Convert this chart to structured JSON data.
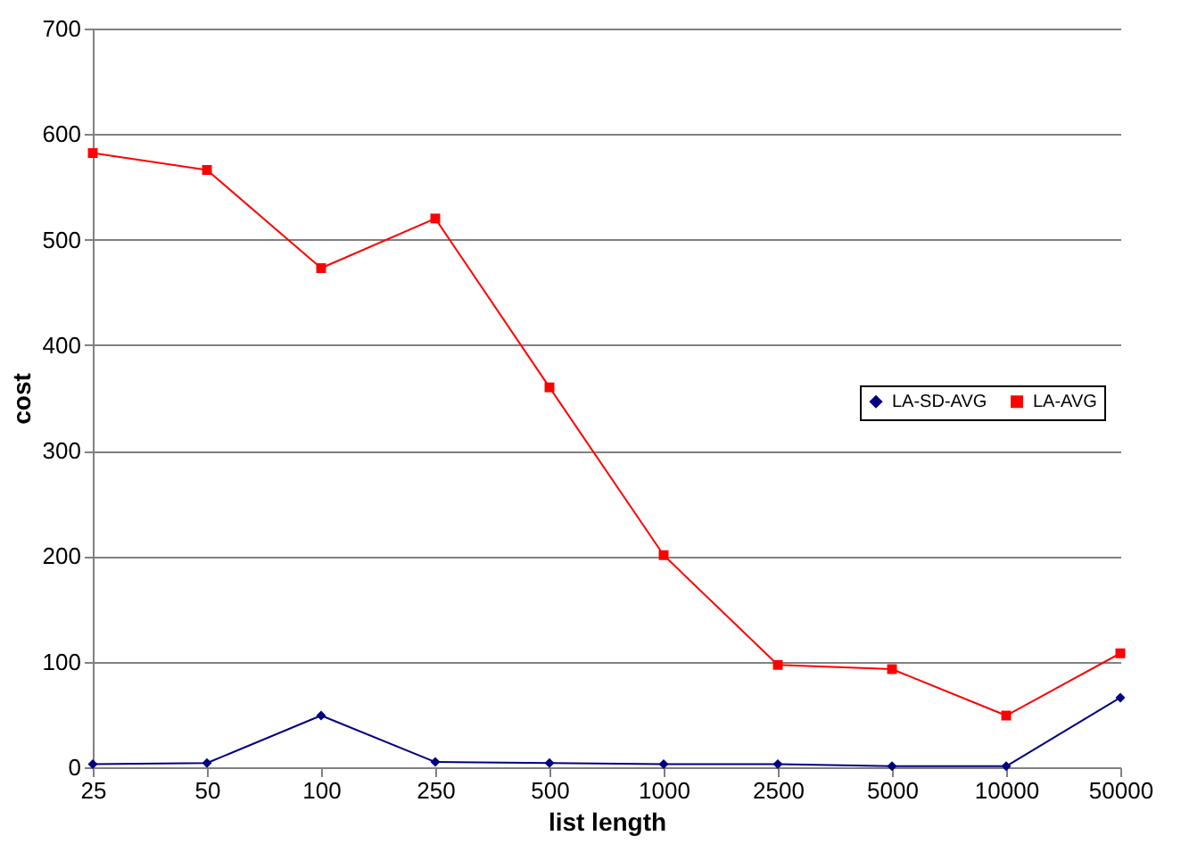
{
  "chart_data": {
    "type": "line",
    "xlabel": "list length",
    "ylabel": "cost",
    "categories": [
      "25",
      "50",
      "100",
      "250",
      "500",
      "1000",
      "2500",
      "5000",
      "10000",
      "50000"
    ],
    "series": [
      {
        "name": "LA-SD-AVG",
        "color": "#000080",
        "marker": "diamond",
        "values": [
          3,
          4,
          49,
          5,
          4,
          3,
          3,
          1,
          1,
          66
        ]
      },
      {
        "name": "LA-AVG",
        "color": "#ff0000",
        "marker": "square",
        "values": [
          582,
          566,
          473,
          520,
          360,
          201,
          97,
          93,
          49,
          108
        ]
      }
    ],
    "ylim": [
      0,
      700
    ],
    "yticks": [
      0,
      100,
      200,
      300,
      400,
      500,
      600,
      700
    ],
    "grid": "y",
    "legend": "right",
    "line_style": "solid"
  }
}
